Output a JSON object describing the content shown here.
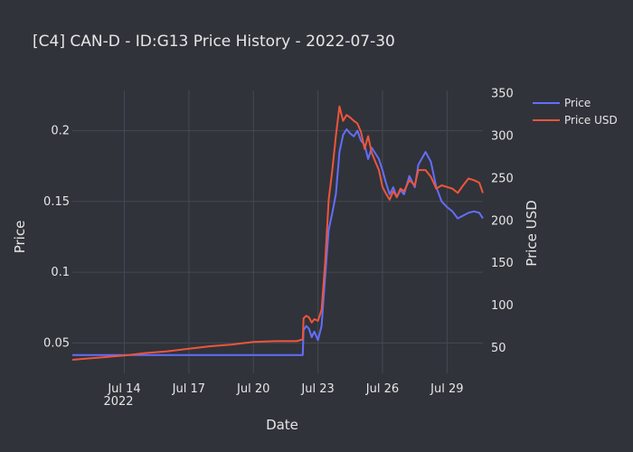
{
  "chart_data": {
    "type": "line",
    "title": "[C4] CAN-D - ID:G13 Price History - 2022-07-30",
    "xlabel": "Date",
    "ylabel": "Price",
    "y2label": "Price USD",
    "x_range": [
      "2022-07-11T14:00",
      "2022-07-30T16:00"
    ],
    "y_range": [
      0.0285,
      0.2285
    ],
    "y2_range": [
      20,
      354
    ],
    "x_ticks": [
      "Jul 14",
      "Jul 17",
      "Jul 20",
      "Jul 23",
      "Jul 26",
      "Jul 29"
    ],
    "x_tick_sublabel": "2022",
    "y_ticks": [
      "0.05",
      "0.1",
      "0.15",
      "0.2"
    ],
    "y2_ticks": [
      "50",
      "100",
      "150",
      "200",
      "250",
      "300",
      "350"
    ],
    "grid": true,
    "legend_position": "top-right",
    "colors": {
      "background": "#30333a",
      "price": "#636efa",
      "price_usd": "#ef553b",
      "grid": "#454952",
      "text": "#e6e6e6"
    },
    "series": [
      {
        "name": "Price",
        "axis": "left",
        "color": "#636efa",
        "points": [
          [
            "2022-07-11T14:00",
            0.0415
          ],
          [
            "2022-07-12T00:00",
            0.0415
          ],
          [
            "2022-07-13T00:00",
            0.0415
          ],
          [
            "2022-07-14T00:00",
            0.0415
          ],
          [
            "2022-07-15T00:00",
            0.0415
          ],
          [
            "2022-07-16T00:00",
            0.0415
          ],
          [
            "2022-07-17T00:00",
            0.0415
          ],
          [
            "2022-07-18T00:00",
            0.0415
          ],
          [
            "2022-07-19T00:00",
            0.0415
          ],
          [
            "2022-07-20T00:00",
            0.0415
          ],
          [
            "2022-07-21T00:00",
            0.0415
          ],
          [
            "2022-07-22T00:00",
            0.0415
          ],
          [
            "2022-07-22T07:00",
            0.0415
          ],
          [
            "2022-07-22T08:00",
            0.059
          ],
          [
            "2022-07-22T11:00",
            0.062
          ],
          [
            "2022-07-22T14:00",
            0.06
          ],
          [
            "2022-07-22T17:00",
            0.054
          ],
          [
            "2022-07-22T20:00",
            0.058
          ],
          [
            "2022-07-23T00:00",
            0.052
          ],
          [
            "2022-07-23T04:00",
            0.062
          ],
          [
            "2022-07-23T08:00",
            0.096
          ],
          [
            "2022-07-23T12:00",
            0.13
          ],
          [
            "2022-07-23T16:00",
            0.142
          ],
          [
            "2022-07-23T20:00",
            0.155
          ],
          [
            "2022-07-24T00:00",
            0.185
          ],
          [
            "2022-07-24T04:00",
            0.197
          ],
          [
            "2022-07-24T08:00",
            0.201
          ],
          [
            "2022-07-24T12:00",
            0.198
          ],
          [
            "2022-07-24T16:00",
            0.196
          ],
          [
            "2022-07-24T20:00",
            0.2
          ],
          [
            "2022-07-25T00:00",
            0.193
          ],
          [
            "2022-07-25T04:00",
            0.19
          ],
          [
            "2022-07-25T08:00",
            0.18
          ],
          [
            "2022-07-25T12:00",
            0.188
          ],
          [
            "2022-07-25T16:00",
            0.184
          ],
          [
            "2022-07-25T20:00",
            0.18
          ],
          [
            "2022-07-26T00:00",
            0.172
          ],
          [
            "2022-07-26T04:00",
            0.163
          ],
          [
            "2022-07-26T08:00",
            0.155
          ],
          [
            "2022-07-26T12:00",
            0.16
          ],
          [
            "2022-07-26T16:00",
            0.153
          ],
          [
            "2022-07-26T20:00",
            0.158
          ],
          [
            "2022-07-27T00:00",
            0.155
          ],
          [
            "2022-07-27T06:00",
            0.168
          ],
          [
            "2022-07-27T12:00",
            0.16
          ],
          [
            "2022-07-27T16:00",
            0.176
          ],
          [
            "2022-07-28T00:00",
            0.185
          ],
          [
            "2022-07-28T06:00",
            0.178
          ],
          [
            "2022-07-28T12:00",
            0.16
          ],
          [
            "2022-07-28T18:00",
            0.15
          ],
          [
            "2022-07-29T00:00",
            0.146
          ],
          [
            "2022-07-29T06:00",
            0.143
          ],
          [
            "2022-07-29T12:00",
            0.138
          ],
          [
            "2022-07-29T18:00",
            0.14
          ],
          [
            "2022-07-30T00:00",
            0.142
          ],
          [
            "2022-07-30T06:00",
            0.143
          ],
          [
            "2022-07-30T12:00",
            0.142
          ],
          [
            "2022-07-30T16:00",
            0.138
          ]
        ]
      },
      {
        "name": "Price USD",
        "axis": "right",
        "color": "#ef553b",
        "points": [
          [
            "2022-07-11T14:00",
            36
          ],
          [
            "2022-07-12T00:00",
            37
          ],
          [
            "2022-07-13T00:00",
            39
          ],
          [
            "2022-07-14T00:00",
            41
          ],
          [
            "2022-07-15T00:00",
            44
          ],
          [
            "2022-07-16T00:00",
            46
          ],
          [
            "2022-07-17T00:00",
            49
          ],
          [
            "2022-07-18T00:00",
            52
          ],
          [
            "2022-07-19T00:00",
            54
          ],
          [
            "2022-07-20T00:00",
            57
          ],
          [
            "2022-07-21T00:00",
            58
          ],
          [
            "2022-07-22T00:00",
            58
          ],
          [
            "2022-07-22T07:00",
            60
          ],
          [
            "2022-07-22T08:00",
            85
          ],
          [
            "2022-07-22T11:00",
            88
          ],
          [
            "2022-07-22T14:00",
            86
          ],
          [
            "2022-07-22T17:00",
            80
          ],
          [
            "2022-07-22T20:00",
            84
          ],
          [
            "2022-07-23T00:00",
            82
          ],
          [
            "2022-07-23T04:00",
            95
          ],
          [
            "2022-07-23T08:00",
            150
          ],
          [
            "2022-07-23T12:00",
            225
          ],
          [
            "2022-07-23T16:00",
            260
          ],
          [
            "2022-07-23T20:00",
            300
          ],
          [
            "2022-07-24T00:00",
            335
          ],
          [
            "2022-07-24T04:00",
            318
          ],
          [
            "2022-07-24T08:00",
            325
          ],
          [
            "2022-07-24T12:00",
            322
          ],
          [
            "2022-07-24T16:00",
            318
          ],
          [
            "2022-07-24T20:00",
            315
          ],
          [
            "2022-07-25T00:00",
            305
          ],
          [
            "2022-07-25T04:00",
            285
          ],
          [
            "2022-07-25T08:00",
            300
          ],
          [
            "2022-07-25T12:00",
            280
          ],
          [
            "2022-07-25T16:00",
            270
          ],
          [
            "2022-07-25T20:00",
            260
          ],
          [
            "2022-07-26T00:00",
            240
          ],
          [
            "2022-07-26T04:00",
            232
          ],
          [
            "2022-07-26T08:00",
            225
          ],
          [
            "2022-07-26T12:00",
            235
          ],
          [
            "2022-07-26T16:00",
            228
          ],
          [
            "2022-07-26T20:00",
            238
          ],
          [
            "2022-07-27T00:00",
            235
          ],
          [
            "2022-07-27T06:00",
            248
          ],
          [
            "2022-07-27T12:00",
            242
          ],
          [
            "2022-07-27T16:00",
            260
          ],
          [
            "2022-07-28T00:00",
            260
          ],
          [
            "2022-07-28T06:00",
            252
          ],
          [
            "2022-07-28T12:00",
            238
          ],
          [
            "2022-07-28T18:00",
            242
          ],
          [
            "2022-07-29T00:00",
            240
          ],
          [
            "2022-07-29T06:00",
            238
          ],
          [
            "2022-07-29T12:00",
            233
          ],
          [
            "2022-07-29T18:00",
            242
          ],
          [
            "2022-07-30T00:00",
            250
          ],
          [
            "2022-07-30T06:00",
            248
          ],
          [
            "2022-07-30T12:00",
            245
          ],
          [
            "2022-07-30T16:00",
            233
          ]
        ]
      }
    ]
  }
}
